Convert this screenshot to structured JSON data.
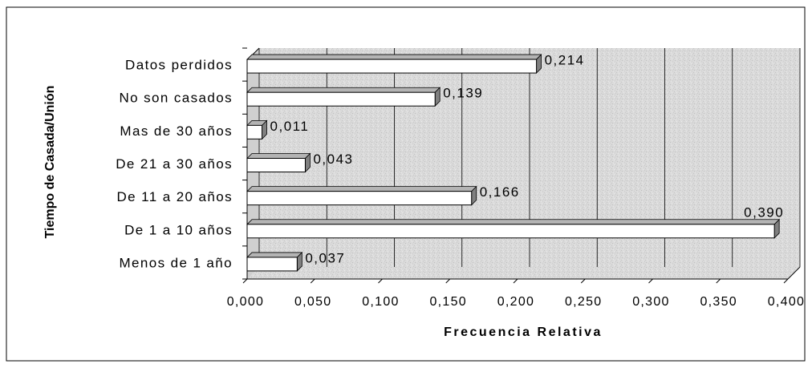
{
  "chart_data": {
    "type": "bar",
    "orientation": "horizontal",
    "style": "3d",
    "categories": [
      "Menos de 1 año",
      "De 1 a 10 años",
      "De 11 a 20 años",
      "De 21 a 30 años",
      "Mas de 30 años",
      "No son casados",
      "Datos perdidos"
    ],
    "values": [
      0.037,
      0.39,
      0.166,
      0.043,
      0.011,
      0.139,
      0.214
    ],
    "value_labels": [
      "0,037",
      "0,390",
      "0,166",
      "0,043",
      "0,011",
      "0,139",
      "0,214"
    ],
    "xlabel": "Frecuencia Relativa",
    "ylabel": "Tiempo de Casada/Unión",
    "xlim": [
      0,
      0.4
    ],
    "x_ticks": [
      0,
      0.05,
      0.1,
      0.15,
      0.2,
      0.25,
      0.3,
      0.35,
      0.4
    ],
    "x_tick_labels": [
      "0,000",
      "0,050",
      "0,100",
      "0,150",
      "0,200",
      "0,250",
      "0,300",
      "0,350",
      "0,400"
    ],
    "grid": true,
    "legend": "none",
    "colors": {
      "bar_fill": "#ffffff",
      "bar_side": "#808080",
      "bar_top": "#b4b4b4",
      "bar_stroke": "#000000",
      "plot_background": "#dcdcdc",
      "gridline": "#000000"
    }
  }
}
